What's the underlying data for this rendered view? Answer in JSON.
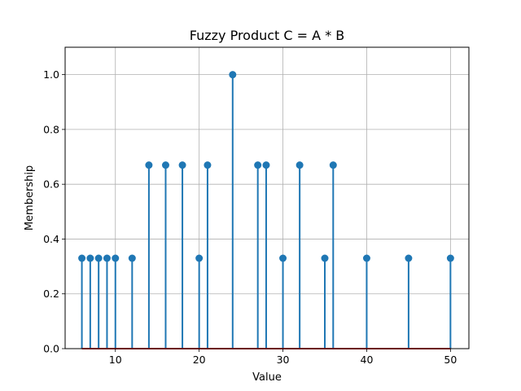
{
  "chart_data": {
    "type": "stem",
    "title": "Fuzzy Product C = A * B",
    "xlabel": "Value",
    "ylabel": "Membership",
    "xlim": [
      4,
      52.2
    ],
    "ylim": [
      0,
      1.1
    ],
    "x_ticks": [
      10,
      20,
      30,
      40,
      50
    ],
    "y_ticks": [
      0.0,
      0.2,
      0.4,
      0.6,
      0.8,
      1.0
    ],
    "x_tick_labels": [
      "10",
      "20",
      "30",
      "40",
      "50"
    ],
    "y_tick_labels": [
      "0.0",
      "0.2",
      "0.4",
      "0.6",
      "0.8",
      "1.0"
    ],
    "grid": true,
    "points": [
      {
        "x": 6,
        "y": 0.33
      },
      {
        "x": 7,
        "y": 0.33
      },
      {
        "x": 8,
        "y": 0.33
      },
      {
        "x": 9,
        "y": 0.33
      },
      {
        "x": 10,
        "y": 0.33
      },
      {
        "x": 12,
        "y": 0.33
      },
      {
        "x": 14,
        "y": 0.67
      },
      {
        "x": 16,
        "y": 0.67
      },
      {
        "x": 18,
        "y": 0.67
      },
      {
        "x": 20,
        "y": 0.33
      },
      {
        "x": 21,
        "y": 0.67
      },
      {
        "x": 24,
        "y": 1.0
      },
      {
        "x": 27,
        "y": 0.67
      },
      {
        "x": 28,
        "y": 0.67
      },
      {
        "x": 30,
        "y": 0.33
      },
      {
        "x": 32,
        "y": 0.67
      },
      {
        "x": 35,
        "y": 0.33
      },
      {
        "x": 36,
        "y": 0.67
      },
      {
        "x": 40,
        "y": 0.33
      },
      {
        "x": 45,
        "y": 0.33
      },
      {
        "x": 50,
        "y": 0.33
      }
    ],
    "colors": {
      "stem": "#1f77b4",
      "marker": "#1f77b4",
      "baseline": "#d62728",
      "grid": "#b0b0b0"
    }
  }
}
